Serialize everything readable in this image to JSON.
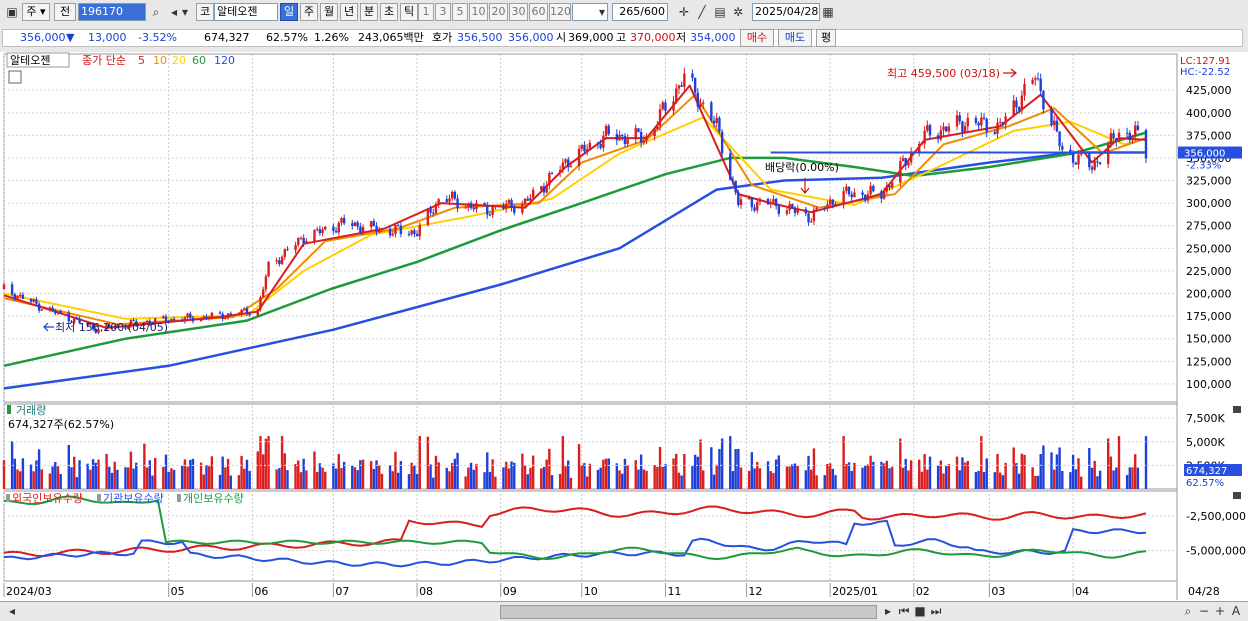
{
  "toolbar": {
    "market_label": "주",
    "prev_label": "전",
    "code": "196170",
    "market_prefix": "코",
    "stock_name": "알테오젠",
    "period_buttons": [
      "일",
      "주",
      "월",
      "년",
      "분",
      "초",
      "틱"
    ],
    "interval_buttons": [
      "1",
      "3",
      "5",
      "10",
      "20",
      "30",
      "60",
      "120"
    ],
    "count_value": "265",
    "count_total": "/600",
    "date_value": "2025/04/28"
  },
  "quote": {
    "price": "356,000",
    "change": "13,000",
    "change_pct": "-3.52%",
    "volume": "674,327",
    "volume_ratio": "62.57%",
    "turnover_ratio": "1.26%",
    "amount": "243,065백만",
    "bid_label": "호가",
    "bid1": "356,500",
    "bid2": "356,000",
    "open_label": "시",
    "open": "369,000",
    "high_label": "고",
    "high": "370,000",
    "low_label": "저",
    "low": "354,000",
    "buy_label": "매수",
    "sell_label": "매도",
    "eval_label": "평"
  },
  "legend": {
    "name": "알테오젠",
    "text": "종가 단순",
    "ma": [
      "5",
      "10",
      "20",
      "60",
      "120"
    ]
  },
  "colors": {
    "up": "#d81e1e",
    "down": "#1e3fd8",
    "ma5": "#d81e1e",
    "ma10": "#f08c00",
    "ma20": "#ffd000",
    "ma60": "#1e9a3c",
    "ma120": "#2850e0",
    "foreign": "#d81e1e",
    "institution": "#2850e0",
    "individual": "#1e9a3c",
    "label_red": "#d01010",
    "label_blue": "#1a3fd6"
  },
  "chart_data": {
    "type": "candlestick",
    "x_range": [
      "2024/03",
      "2025/04/28"
    ],
    "x_ticks": [
      "2024/03",
      "05",
      "06",
      "07",
      "08",
      "09",
      "10",
      "11",
      "12",
      "2025/01",
      "02",
      "03",
      "04",
      "04/28"
    ],
    "ylim": [
      80000,
      465000
    ],
    "y_ticks": [
      "425,000",
      "400,000",
      "375,000",
      "350,000",
      "325,000",
      "300,000",
      "275,000",
      "250,000",
      "225,000",
      "200,000",
      "175,000",
      "150,000",
      "125,000",
      "100,000"
    ],
    "close_path": [
      [
        "2024-03-01",
        205000
      ],
      [
        "2024-03-15",
        185000
      ],
      [
        "2024-04-05",
        160000
      ],
      [
        "2024-04-20",
        168000
      ],
      [
        "2024-05-05",
        172000
      ],
      [
        "2024-05-20",
        175000
      ],
      [
        "2024-06-03",
        182000
      ],
      [
        "2024-06-07",
        230000
      ],
      [
        "2024-06-20",
        262000
      ],
      [
        "2024-07-05",
        278000
      ],
      [
        "2024-07-20",
        270000
      ],
      [
        "2024-08-01",
        268000
      ],
      [
        "2024-08-10",
        308000
      ],
      [
        "2024-08-25",
        292000
      ],
      [
        "2024-09-10",
        300000
      ],
      [
        "2024-09-25",
        345000
      ],
      [
        "2024-10-10",
        375000
      ],
      [
        "2024-10-25",
        372000
      ],
      [
        "2024-11-08",
        440000
      ],
      [
        "2024-11-20",
        385000
      ],
      [
        "2024-11-28",
        300000
      ],
      [
        "2024-12-10",
        300000
      ],
      [
        "2024-12-25",
        285000
      ],
      [
        "2025-01-05",
        310000
      ],
      [
        "2025-01-20",
        310000
      ],
      [
        "2025-02-05",
        375000
      ],
      [
        "2025-02-20",
        390000
      ],
      [
        "2025-03-05",
        385000
      ],
      [
        "2025-03-18",
        440000
      ],
      [
        "2025-03-28",
        358000
      ],
      [
        "2025-04-08",
        340000
      ],
      [
        "2025-04-18",
        378000
      ],
      [
        "2025-04-25",
        375000
      ],
      [
        "2025-04-28",
        356000
      ]
    ],
    "ma5_path": [
      [
        "2024-03-01",
        198000
      ],
      [
        "2024-04-08",
        162000
      ],
      [
        "2024-05-20",
        174000
      ],
      [
        "2024-06-03",
        180000
      ],
      [
        "2024-06-20",
        255000
      ],
      [
        "2024-07-20",
        272000
      ],
      [
        "2024-08-10",
        300000
      ],
      [
        "2024-09-10",
        295000
      ],
      [
        "2024-09-25",
        340000
      ],
      [
        "2024-10-10",
        372000
      ],
      [
        "2024-10-25",
        372000
      ],
      [
        "2024-11-10",
        430000
      ],
      [
        "2024-11-28",
        310000
      ],
      [
        "2024-12-10",
        300000
      ],
      [
        "2024-12-25",
        290000
      ],
      [
        "2025-01-20",
        310000
      ],
      [
        "2025-02-05",
        370000
      ],
      [
        "2025-03-05",
        385000
      ],
      [
        "2025-03-20",
        420000
      ],
      [
        "2025-04-08",
        345000
      ],
      [
        "2025-04-18",
        372000
      ],
      [
        "2025-04-28",
        370000
      ]
    ],
    "ma10_path": [
      [
        "2024-03-01",
        195000
      ],
      [
        "2024-04-12",
        166000
      ],
      [
        "2024-05-25",
        174000
      ],
      [
        "2024-06-10",
        205000
      ],
      [
        "2024-06-28",
        258000
      ],
      [
        "2024-07-25",
        272000
      ],
      [
        "2024-08-15",
        295000
      ],
      [
        "2024-09-15",
        300000
      ],
      [
        "2024-10-01",
        345000
      ],
      [
        "2024-10-25",
        370000
      ],
      [
        "2024-11-12",
        420000
      ],
      [
        "2024-12-03",
        320000
      ],
      [
        "2024-12-28",
        295000
      ],
      [
        "2025-01-25",
        310000
      ],
      [
        "2025-02-12",
        365000
      ],
      [
        "2025-03-08",
        385000
      ],
      [
        "2025-03-25",
        405000
      ],
      [
        "2025-04-12",
        355000
      ],
      [
        "2025-04-28",
        372000
      ]
    ],
    "ma20_path": [
      [
        "2024-03-01",
        200000
      ],
      [
        "2024-04-15",
        172000
      ],
      [
        "2024-05-30",
        176000
      ],
      [
        "2024-06-20",
        225000
      ],
      [
        "2024-07-15",
        265000
      ],
      [
        "2024-08-20",
        285000
      ],
      [
        "2024-09-20",
        305000
      ],
      [
        "2024-10-15",
        355000
      ],
      [
        "2024-11-15",
        395000
      ],
      [
        "2024-12-10",
        315000
      ],
      [
        "2025-01-10",
        298000
      ],
      [
        "2025-02-10",
        340000
      ],
      [
        "2025-03-10",
        380000
      ],
      [
        "2025-03-31",
        390000
      ],
      [
        "2025-04-20",
        365000
      ],
      [
        "2025-04-28",
        372000
      ]
    ],
    "ma60_path": [
      [
        "2024-03-01",
        120000
      ],
      [
        "2024-04-15",
        150000
      ],
      [
        "2024-05-30",
        170000
      ],
      [
        "2024-06-30",
        205000
      ],
      [
        "2024-08-01",
        235000
      ],
      [
        "2024-09-01",
        270000
      ],
      [
        "2024-10-01",
        300000
      ],
      [
        "2024-11-01",
        332000
      ],
      [
        "2024-11-25",
        350000
      ],
      [
        "2024-12-15",
        350000
      ],
      [
        "2025-01-10",
        340000
      ],
      [
        "2025-02-01",
        330000
      ],
      [
        "2025-03-01",
        340000
      ],
      [
        "2025-04-01",
        355000
      ],
      [
        "2025-04-28",
        378000
      ]
    ],
    "ma120_path": [
      [
        "2024-03-01",
        95000
      ],
      [
        "2024-05-01",
        120000
      ],
      [
        "2024-07-01",
        160000
      ],
      [
        "2024-09-01",
        210000
      ],
      [
        "2024-10-15",
        250000
      ],
      [
        "2024-11-20",
        315000
      ],
      [
        "2024-12-15",
        325000
      ],
      [
        "2025-01-20",
        328000
      ],
      [
        "2025-03-01",
        345000
      ],
      [
        "2025-04-01",
        356000
      ],
      [
        "2025-04-28",
        356000
      ]
    ],
    "volume_axis": [
      "7,500K",
      "5,000K",
      "2,500K"
    ],
    "volume_ylim": [
      0,
      9000
    ],
    "holdings_axis": [
      "-2,500,000",
      "-5,000,000"
    ],
    "holdings_ylim": [
      -7200000,
      -700000
    ],
    "annotations": {
      "high": "최고 459,500 (03/18)",
      "low": "최저 156,200 (04/05)",
      "dividend": "배당락(0.00%)",
      "price_tag": "356,000",
      "price_pct": "-2.33%",
      "lc": "LC:127.91",
      "hc": "HC:-22.52",
      "volume_title": "거래량",
      "volume_value": "674,327주(62.57%)",
      "volume_tag": "674,327",
      "volume_pct": "62.57%",
      "holdings_legend": [
        "외국인보유수량",
        "기관보유수량",
        "개인보유수량"
      ]
    }
  }
}
